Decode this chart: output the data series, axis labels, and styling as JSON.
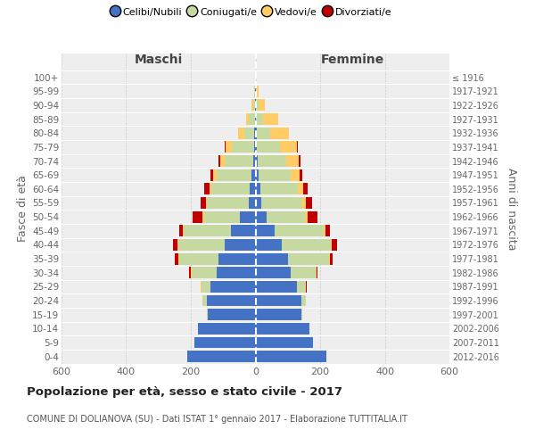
{
  "age_groups": [
    "0-4",
    "5-9",
    "10-14",
    "15-19",
    "20-24",
    "25-29",
    "30-34",
    "35-39",
    "40-44",
    "45-49",
    "50-54",
    "55-59",
    "60-64",
    "65-69",
    "70-74",
    "75-79",
    "80-84",
    "85-89",
    "90-94",
    "95-99",
    "100+"
  ],
  "birth_years": [
    "2012-2016",
    "2007-2011",
    "2002-2006",
    "1997-2001",
    "1992-1996",
    "1987-1991",
    "1982-1986",
    "1977-1981",
    "1972-1976",
    "1967-1971",
    "1962-1966",
    "1957-1961",
    "1952-1956",
    "1947-1951",
    "1942-1946",
    "1937-1941",
    "1932-1936",
    "1927-1931",
    "1922-1926",
    "1917-1921",
    "≤ 1916"
  ],
  "male_celibi": [
    210,
    188,
    178,
    148,
    150,
    140,
    120,
    115,
    95,
    75,
    48,
    22,
    18,
    12,
    8,
    5,
    3,
    2,
    1,
    1,
    0
  ],
  "male_coniugati": [
    0,
    0,
    0,
    2,
    14,
    28,
    78,
    122,
    145,
    148,
    112,
    128,
    118,
    108,
    88,
    68,
    32,
    18,
    6,
    2,
    0
  ],
  "male_vedovi": [
    0,
    0,
    0,
    0,
    0,
    1,
    2,
    2,
    2,
    2,
    3,
    4,
    5,
    12,
    14,
    20,
    18,
    10,
    5,
    1,
    0
  ],
  "male_divorziati": [
    0,
    0,
    0,
    0,
    0,
    2,
    5,
    10,
    14,
    12,
    32,
    16,
    18,
    8,
    5,
    2,
    0,
    0,
    0,
    0,
    0
  ],
  "female_nubili": [
    218,
    178,
    168,
    142,
    142,
    128,
    108,
    100,
    80,
    60,
    35,
    18,
    14,
    10,
    8,
    5,
    3,
    2,
    1,
    0,
    0
  ],
  "female_coniugate": [
    0,
    0,
    0,
    2,
    14,
    28,
    78,
    128,
    152,
    152,
    118,
    128,
    118,
    98,
    88,
    70,
    42,
    22,
    8,
    2,
    0
  ],
  "female_vedove": [
    0,
    0,
    0,
    0,
    0,
    1,
    2,
    2,
    3,
    5,
    7,
    10,
    16,
    28,
    38,
    54,
    58,
    45,
    20,
    8,
    1
  ],
  "female_divorziate": [
    0,
    0,
    0,
    0,
    0,
    2,
    4,
    8,
    18,
    14,
    32,
    18,
    14,
    8,
    5,
    3,
    0,
    0,
    0,
    0,
    0
  ],
  "colors_celibi": "#4472C4",
  "colors_coniugati": "#c5d9a0",
  "colors_vedovi": "#FFCC66",
  "colors_divorziati": "#C00000",
  "xlim": 600,
  "title": "Popolazione per età, sesso e stato civile - 2017",
  "subtitle": "COMUNE DI DOLIANOVA (SU) - Dati ISTAT 1° gennaio 2017 - Elaborazione TUTTITALIA.IT",
  "ylabel_left": "Fasce di età",
  "ylabel_right": "Anni di nascita",
  "bg_color": "#eeeeee",
  "header_maschi": "Maschi",
  "header_femmine": "Femmine",
  "legend_labels": [
    "Celibi/Nubili",
    "Coniugati/e",
    "Vedovi/e",
    "Divorziati/e"
  ]
}
